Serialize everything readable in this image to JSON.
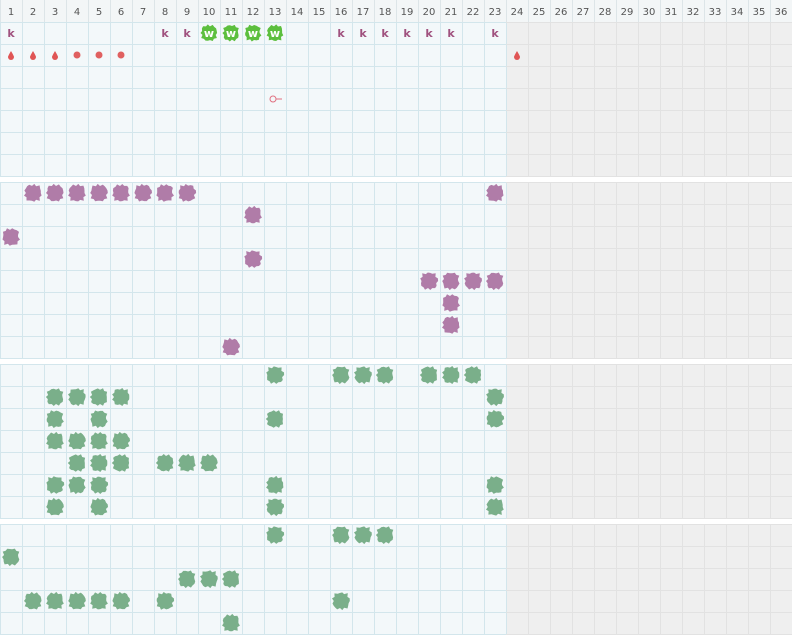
{
  "header": {
    "columns": [
      "1",
      "2",
      "3",
      "4",
      "5",
      "6",
      "7",
      "8",
      "9",
      "10",
      "11",
      "12",
      "13",
      "14",
      "15",
      "16",
      "17",
      "18",
      "19",
      "20",
      "21",
      "22",
      "23",
      "24",
      "25",
      "26",
      "27",
      "28",
      "29",
      "30",
      "31",
      "32",
      "33",
      "34",
      "35",
      "36"
    ]
  },
  "first_row": {
    "cells": [
      "k",
      null,
      null,
      null,
      null,
      null,
      null,
      "k",
      "k",
      "w",
      "w",
      "w",
      "w",
      null,
      null,
      "k",
      "k",
      "k",
      "k",
      "k",
      "k",
      null,
      "k",
      null,
      null,
      null,
      null,
      null,
      null,
      null,
      null,
      null,
      null,
      null,
      null,
      null
    ]
  }
}
